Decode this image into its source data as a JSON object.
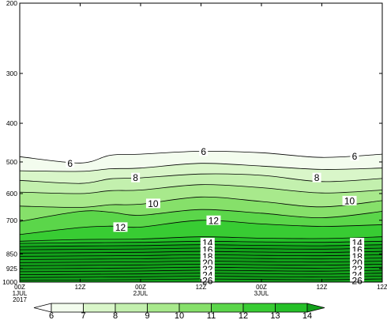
{
  "chart_data": {
    "type": "contour",
    "title": "",
    "xlabel": "",
    "ylabel": "",
    "yscale": "log",
    "ylim": [
      1000,
      200
    ],
    "xlim": [
      0,
      72
    ],
    "y_ticks": [
      {
        "value": 200,
        "label": "200"
      },
      {
        "value": 300,
        "label": "300"
      },
      {
        "value": 400,
        "label": "400"
      },
      {
        "value": 500,
        "label": "500"
      },
      {
        "value": 600,
        "label": "600"
      },
      {
        "value": 700,
        "label": "700"
      },
      {
        "value": 850,
        "label": "850"
      },
      {
        "value": 925,
        "label": "925"
      },
      {
        "value": 1000,
        "label": "1000"
      }
    ],
    "x_ticks": [
      {
        "value": 0,
        "label": "00Z",
        "sub": "1JUL",
        "sub2": "2017"
      },
      {
        "value": 12,
        "label": "12Z",
        "sub": "",
        "sub2": ""
      },
      {
        "value": 24,
        "label": "00Z",
        "sub": "2JUL",
        "sub2": ""
      },
      {
        "value": 36,
        "label": "12Z",
        "sub": "",
        "sub2": ""
      },
      {
        "value": 48,
        "label": "00Z",
        "sub": "3JUL",
        "sub2": ""
      },
      {
        "value": 60,
        "label": "12Z",
        "sub": "",
        "sub2": ""
      }
    ],
    "contours": [
      {
        "level": 6,
        "x": [
          0,
          12,
          18,
          24,
          36,
          48,
          60,
          72
        ],
        "p": [
          485,
          503,
          481,
          478,
          470,
          474,
          487,
          478
        ]
      },
      {
        "level": 7,
        "x": [
          0,
          12,
          18,
          24,
          36,
          48,
          60,
          72
        ],
        "p": [
          526,
          528,
          520,
          518,
          504,
          512,
          522,
          518
        ]
      },
      {
        "level": 8,
        "x": [
          0,
          12,
          18,
          24,
          36,
          48,
          60,
          72
        ],
        "p": [
          556,
          566,
          551,
          548,
          536,
          540,
          560,
          550
        ]
      },
      {
        "level": 9,
        "x": [
          0,
          12,
          18,
          24,
          36,
          48,
          60,
          72
        ],
        "p": [
          595,
          600,
          590,
          588,
          570,
          580,
          598,
          588
        ]
      },
      {
        "level": 10,
        "x": [
          0,
          12,
          18,
          24,
          36,
          48,
          60,
          72
        ],
        "p": [
          645,
          650,
          640,
          638,
          612,
          628,
          648,
          625
        ]
      },
      {
        "level": 11,
        "x": [
          0,
          12,
          18,
          24,
          36,
          48,
          60,
          72
        ],
        "p": [
          705,
          665,
          668,
          680,
          658,
          672,
          690,
          665
        ]
      },
      {
        "level": 12,
        "x": [
          0,
          12,
          18,
          24,
          36,
          48,
          60,
          72
        ],
        "p": [
          760,
          730,
          724,
          728,
          700,
          715,
          725,
          718
        ]
      },
      {
        "level": 13,
        "x": [
          0,
          12,
          24,
          36,
          48,
          60,
          72
        ],
        "p": [
          790,
          782,
          780,
          770,
          776,
          778,
          770
        ]
      },
      {
        "level": 14,
        "x": [
          0,
          12,
          24,
          36,
          48,
          60,
          72
        ],
        "p": [
          800,
          797,
          795,
          790,
          793,
          795,
          790
        ]
      },
      {
        "level": 15,
        "x": [
          0,
          12,
          24,
          36,
          48,
          60,
          72
        ],
        "p": [
          815,
          812,
          810,
          806,
          809,
          811,
          806
        ]
      },
      {
        "level": 16,
        "x": [
          0,
          12,
          24,
          36,
          48,
          60,
          72
        ],
        "p": [
          830,
          828,
          826,
          822,
          825,
          827,
          822
        ]
      },
      {
        "level": 17,
        "x": [
          0,
          12,
          24,
          36,
          48,
          60,
          72
        ],
        "p": [
          846,
          844,
          842,
          838,
          841,
          843,
          838
        ]
      },
      {
        "level": 18,
        "x": [
          0,
          12,
          24,
          36,
          48,
          60,
          72
        ],
        "p": [
          862,
          860,
          858,
          854,
          857,
          859,
          854
        ]
      },
      {
        "level": 19,
        "x": [
          0,
          12,
          24,
          36,
          48,
          60,
          72
        ],
        "p": [
          878,
          876,
          874,
          870,
          873,
          875,
          870
        ]
      },
      {
        "level": 20,
        "x": [
          0,
          12,
          24,
          36,
          48,
          60,
          72
        ],
        "p": [
          894,
          892,
          890,
          886,
          889,
          891,
          886
        ]
      },
      {
        "level": 21,
        "x": [
          0,
          12,
          24,
          36,
          48,
          60,
          72
        ],
        "p": [
          910,
          908,
          906,
          902,
          905,
          907,
          902
        ]
      },
      {
        "level": 22,
        "x": [
          0,
          12,
          24,
          36,
          48,
          60,
          72
        ],
        "p": [
          926,
          924,
          922,
          918,
          921,
          923,
          918
        ]
      },
      {
        "level": 23,
        "x": [
          0,
          12,
          24,
          36,
          48,
          60,
          72
        ],
        "p": [
          942,
          940,
          938,
          934,
          937,
          939,
          934
        ]
      },
      {
        "level": 24,
        "x": [
          0,
          12,
          24,
          36,
          48,
          60,
          72
        ],
        "p": [
          958,
          956,
          954,
          950,
          953,
          955,
          950
        ]
      },
      {
        "level": 25,
        "x": [
          0,
          12,
          24,
          36,
          48,
          60,
          72
        ],
        "p": [
          974,
          972,
          970,
          966,
          969,
          971,
          966
        ]
      },
      {
        "level": 26,
        "x": [
          0,
          12,
          24,
          36,
          48,
          60,
          72
        ],
        "p": [
          990,
          988,
          986,
          982,
          985,
          987,
          982
        ]
      }
    ],
    "contour_labels": [
      {
        "text": "6",
        "x": 10,
        "p": 503
      },
      {
        "text": "6",
        "x": 36.5,
        "p": 470
      },
      {
        "text": "6",
        "x": 66.5,
        "p": 483
      },
      {
        "text": "8",
        "x": 23,
        "p": 547
      },
      {
        "text": "8",
        "x": 59,
        "p": 547
      },
      {
        "text": "10",
        "x": 26.5,
        "p": 635
      },
      {
        "text": "10",
        "x": 65.5,
        "p": 625
      },
      {
        "text": "12",
        "x": 20,
        "p": 728
      },
      {
        "text": "12",
        "x": 38.5,
        "p": 700
      },
      {
        "text": "14",
        "x": 37.3,
        "p": 796
      },
      {
        "text": "16",
        "x": 37.3,
        "p": 829
      },
      {
        "text": "18",
        "x": 37.3,
        "p": 862
      },
      {
        "text": "20",
        "x": 37.3,
        "p": 895
      },
      {
        "text": "22",
        "x": 37.3,
        "p": 928
      },
      {
        "text": "24",
        "x": 37.3,
        "p": 959
      },
      {
        "text": "26",
        "x": 37.3,
        "p": 990
      },
      {
        "text": "14",
        "x": 67,
        "p": 796
      },
      {
        "text": "16",
        "x": 67,
        "p": 829
      },
      {
        "text": "18",
        "x": 67,
        "p": 862
      },
      {
        "text": "20",
        "x": 67,
        "p": 895
      },
      {
        "text": "22",
        "x": 67,
        "p": 928
      },
      {
        "text": "24",
        "x": 67,
        "p": 959
      },
      {
        "text": "26",
        "x": 67,
        "p": 990
      }
    ],
    "colorbar": {
      "labels": [
        "6",
        "7",
        "8",
        "9",
        "10",
        "11",
        "12",
        "13",
        "14"
      ],
      "colors": [
        "#f3fcee",
        "#d9f6c9",
        "#c3f0ae",
        "#a8e98c",
        "#86e06a",
        "#5bd64a",
        "#38cc33",
        "#25c028",
        "#18b020"
      ],
      "under_color": "#ffffff",
      "over_color": "#12a01a"
    }
  }
}
